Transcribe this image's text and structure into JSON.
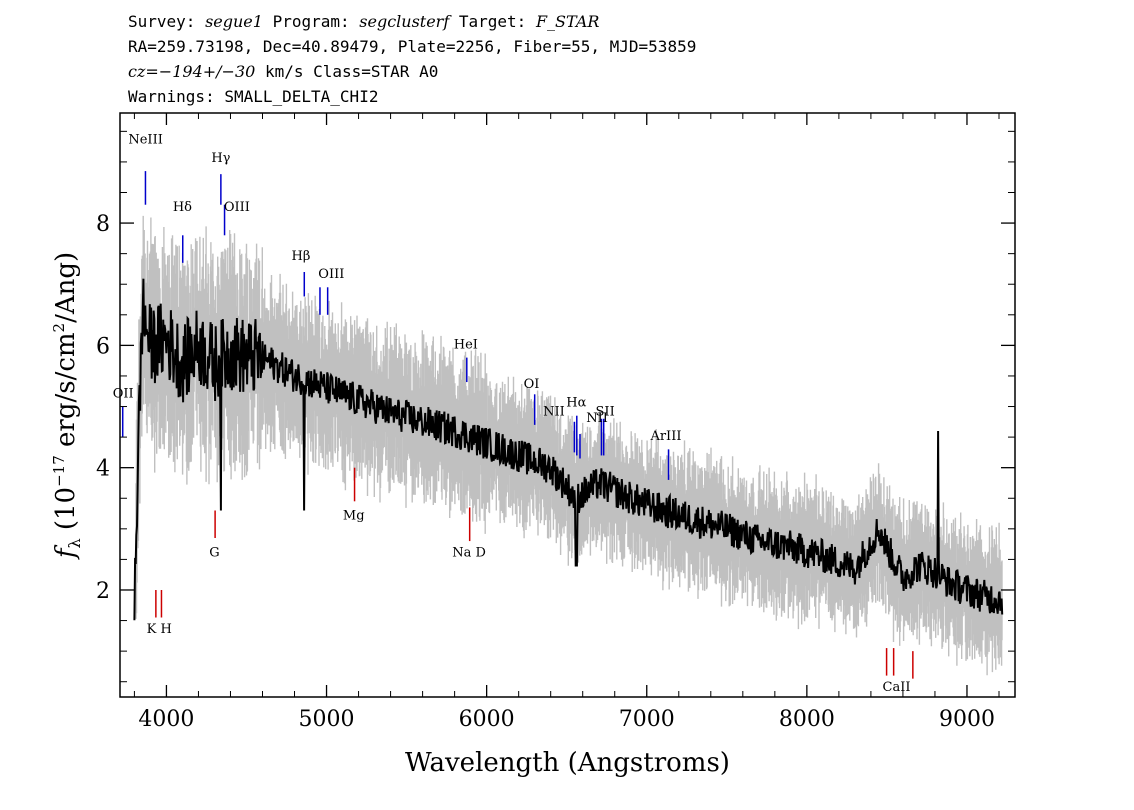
{
  "header": {
    "line1": {
      "survey_label": "Survey: ",
      "survey": "segue1",
      "program_label": " Program: ",
      "program": "segclusterf",
      "target_label": " Target: ",
      "target": "F_STAR"
    },
    "line2": "RA=259.73198, Dec=40.89479, Plate=2256, Fiber=55, MJD=53859",
    "line3": {
      "cz": "cz=−194+/−30",
      "rest": " km/s Class=STAR A0"
    },
    "line4": "Warnings: SMALL_DELTA_CHI2"
  },
  "chart_data": {
    "type": "line",
    "xlabel": "Wavelength (Angstroms)",
    "ylabel": "f_λ (10^-17 erg/s/cm²/Ang)",
    "xlim": [
      3710,
      9300
    ],
    "ylim": [
      0.25,
      9.8
    ],
    "xticks": [
      4000,
      5000,
      6000,
      7000,
      8000,
      9000
    ],
    "yticks": [
      2,
      4,
      6,
      8
    ],
    "grid": false,
    "colors": {
      "noise": "#c0c0c0",
      "flux": "#000000",
      "emission": "#0000cc",
      "absorption": "#cc0000"
    },
    "flux_points": {
      "x": [
        3800,
        3850,
        3900,
        4000,
        4100,
        4200,
        4300,
        4400,
        4500,
        4600,
        4800,
        5000,
        5200,
        5400,
        5600,
        5800,
        6000,
        6200,
        6400,
        6560,
        6700,
        6900,
        7100,
        7300,
        7500,
        7700,
        7900,
        8100,
        8300,
        8450,
        8500,
        8600,
        8700,
        8800,
        8900,
        9000,
        9100,
        9200
      ],
      "y": [
        2.0,
        6.6,
        6.0,
        6.1,
        5.7,
        6.0,
        5.7,
        5.9,
        5.8,
        5.8,
        5.5,
        5.3,
        5.1,
        4.9,
        4.75,
        4.6,
        4.4,
        4.2,
        4.0,
        3.5,
        3.75,
        3.5,
        3.3,
        3.15,
        3.0,
        2.8,
        2.7,
        2.55,
        2.35,
        3.0,
        2.7,
        2.2,
        2.4,
        2.3,
        2.1,
        2.0,
        1.9,
        1.85
      ]
    },
    "emission_lines": [
      {
        "label": "NeIII",
        "x": 3869,
        "y1": 8.85,
        "y2": 8.3
      },
      {
        "label": "Hδ",
        "x": 4102,
        "y1": 7.8,
        "y2": 7.35
      },
      {
        "label": "Hγ",
        "x": 4340,
        "y1": 8.8,
        "y2": 8.3
      },
      {
        "label": "OIII",
        "x": 4363,
        "y1": 8.3,
        "y2": 7.8
      },
      {
        "label": "Hβ",
        "x": 4861,
        "y1": 7.2,
        "y2": 6.8
      },
      {
        "label": "OIII",
        "x": 4959,
        "y1": 6.95,
        "y2": 6.5
      },
      {
        "label": "OIII",
        "x": 5007,
        "y1": 6.95,
        "y2": 6.5
      },
      {
        "label": "HeI",
        "x": 5876,
        "y1": 5.8,
        "y2": 5.4
      },
      {
        "label": "OI",
        "x": 6300,
        "y1": 5.2,
        "y2": 4.7
      },
      {
        "label": "NII",
        "x": 6548,
        "y1": 4.75,
        "y2": 4.25
      },
      {
        "label": "Hα",
        "x": 6563,
        "y1": 4.85,
        "y2": 4.2
      },
      {
        "label": "NII",
        "x": 6583,
        "y1": 4.55,
        "y2": 4.15
      },
      {
        "label": "SII",
        "x": 6717,
        "y1": 4.8,
        "y2": 4.2
      },
      {
        "label": "SII",
        "x": 6731,
        "y1": 4.8,
        "y2": 4.2
      },
      {
        "label": "ArIII",
        "x": 7136,
        "y1": 4.3,
        "y2": 3.8
      },
      {
        "label": "OII",
        "x": 3727,
        "y1": 5.0,
        "y2": 4.5
      }
    ],
    "absorption_lines": [
      {
        "label": "K",
        "x": 3934,
        "y1": 2.0,
        "y2": 1.55
      },
      {
        "label": "H",
        "x": 3969,
        "y1": 2.0,
        "y2": 1.55
      },
      {
        "label": "G",
        "x": 4304,
        "y1": 3.3,
        "y2": 2.85
      },
      {
        "label": "Mg",
        "x": 5175,
        "y1": 4.0,
        "y2": 3.45
      },
      {
        "label": "Na",
        "x": 5894,
        "y1": 3.35,
        "y2": 2.8
      },
      {
        "label": "CaII",
        "x": 8498,
        "y1": 1.05,
        "y2": 0.6
      },
      {
        "label": "CaII",
        "x": 8542,
        "y1": 1.05,
        "y2": 0.6
      },
      {
        "label": "CaII",
        "x": 8662,
        "y1": 1.0,
        "y2": 0.55
      }
    ],
    "line_labels": [
      {
        "text": "NeIII",
        "x": 3870,
        "y": 9.3,
        "color": "#000"
      },
      {
        "text": "Hδ",
        "x": 4100,
        "y": 8.2,
        "color": "#000"
      },
      {
        "text": "Hγ",
        "x": 4340,
        "y": 9.0,
        "color": "#000"
      },
      {
        "text": "OIII",
        "x": 4440,
        "y": 8.2,
        "color": "#000"
      },
      {
        "text": "Hβ",
        "x": 4840,
        "y": 7.4,
        "color": "#000"
      },
      {
        "text": "OIII",
        "x": 5030,
        "y": 7.1,
        "color": "#000"
      },
      {
        "text": "HeI",
        "x": 5870,
        "y": 5.95,
        "color": "#000"
      },
      {
        "text": "OI",
        "x": 6280,
        "y": 5.3,
        "color": "#000"
      },
      {
        "text": "NII",
        "x": 6420,
        "y": 4.85,
        "color": "#000"
      },
      {
        "text": "Hα",
        "x": 6560,
        "y": 5.0,
        "color": "#000"
      },
      {
        "text": "NII",
        "x": 6690,
        "y": 4.75,
        "color": "#000"
      },
      {
        "text": "SII",
        "x": 6740,
        "y": 4.85,
        "color": "#000"
      },
      {
        "text": "ArIII",
        "x": 7120,
        "y": 4.45,
        "color": "#000"
      },
      {
        "text": "OII",
        "x": 3730,
        "y": 5.15,
        "color": "#000"
      },
      {
        "text": "K H",
        "x": 3955,
        "y": 1.3,
        "color": "#000"
      },
      {
        "text": "G",
        "x": 4300,
        "y": 2.55,
        "color": "#000"
      },
      {
        "text": "Mg",
        "x": 5170,
        "y": 3.15,
        "color": "#000"
      },
      {
        "text": "Na  D",
        "x": 5890,
        "y": 2.55,
        "color": "#000"
      },
      {
        "text": "CaII",
        "x": 8560,
        "y": 0.35,
        "color": "#000"
      }
    ]
  }
}
